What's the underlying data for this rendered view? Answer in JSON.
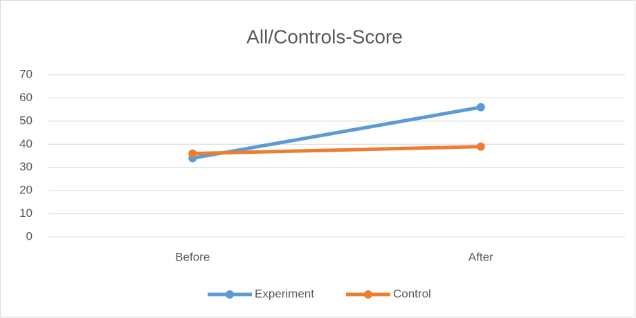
{
  "chart_data": {
    "type": "line",
    "title": "All/Controls-Score",
    "categories": [
      "Before",
      "After"
    ],
    "series": [
      {
        "name": "Experiment",
        "color": "#5b9bd5",
        "values": [
          34,
          56
        ]
      },
      {
        "name": "Control",
        "color": "#ed7d31",
        "values": [
          36,
          39
        ]
      }
    ],
    "ylim": [
      0,
      70
    ],
    "yticks": [
      0,
      10,
      20,
      30,
      40,
      50,
      60,
      70
    ],
    "grid": true,
    "legend": "bottom"
  }
}
